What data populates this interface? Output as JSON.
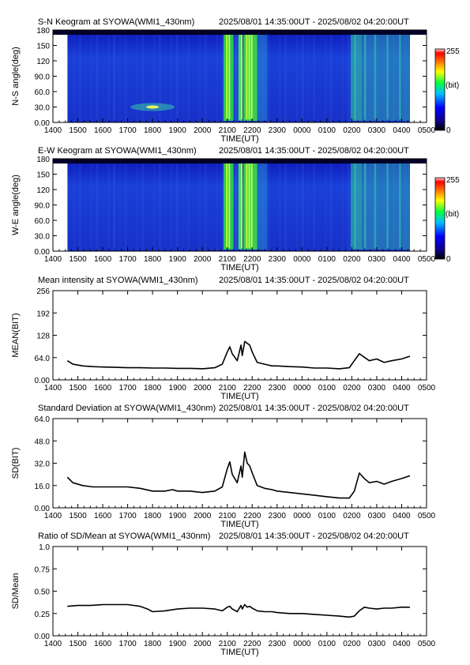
{
  "time_ticks": [
    "1400",
    "1500",
    "1600",
    "1700",
    "1800",
    "1900",
    "2000",
    "2100",
    "2200",
    "2300",
    "0000",
    "0100",
    "0200",
    "0300",
    "0400",
    "0500"
  ],
  "xlabel": "TIME(UT)",
  "period": "2025/08/01 14:35:00UT - 2025/08/02 04:20:00UT",
  "colorbar": {
    "max_label": "255",
    "unit_label": "(bit)",
    "min_label": "0"
  },
  "chart_data": [
    {
      "type": "heatmap",
      "title": "S-N Keogram at SYOWA(WMI1_430nm)",
      "ylabel": "N-S angle(deg)",
      "yticks": [
        "180",
        "150",
        "120",
        "90.0",
        "60.0",
        "30.0",
        "0.00"
      ],
      "ylim": [
        0,
        180
      ],
      "xlim_hours": [
        14.0,
        29.0
      ],
      "data_start_hour": 14.583,
      "data_end_hour": 28.333,
      "features": [
        {
          "x_hour": 21.05,
          "angle": 90,
          "level": "bright"
        },
        {
          "x_hour": 21.55,
          "angle": 90,
          "level": "bright"
        },
        {
          "x_hour": 21.85,
          "angle": 90,
          "level": "bright"
        },
        {
          "x_hour": 26.4,
          "angle": 90,
          "level": "moderate"
        },
        {
          "x_hour": 18.0,
          "angle": 30,
          "level": "spot"
        }
      ]
    },
    {
      "type": "heatmap",
      "title": "E-W Keogram at SYOWA(WMI1_430nm)",
      "ylabel": "W-E angle(deg)",
      "yticks": [
        "180",
        "150",
        "120",
        "90.0",
        "60.0",
        "30.0",
        "0.00"
      ],
      "ylim": [
        0,
        180
      ],
      "xlim_hours": [
        14.0,
        29.0
      ],
      "data_start_hour": 14.583,
      "data_end_hour": 28.333
    },
    {
      "type": "line",
      "title": "Mean intensity at SYOWA(WMI1_430nm)",
      "ylabel": "MEAN(BIT)",
      "yticks": [
        "256",
        "192",
        "128",
        "64.0",
        "0.00"
      ],
      "ylim": [
        0,
        256
      ],
      "x_hours": [
        14.58,
        14.8,
        15.2,
        15.6,
        16.0,
        16.5,
        17.0,
        17.5,
        18.0,
        18.5,
        19.0,
        19.5,
        20.0,
        20.5,
        20.8,
        21.0,
        21.1,
        21.2,
        21.4,
        21.55,
        21.6,
        21.7,
        21.8,
        21.9,
        22.0,
        22.2,
        22.5,
        22.8,
        23.0,
        23.5,
        24.0,
        24.5,
        25.0,
        25.5,
        25.9,
        26.1,
        26.3,
        26.5,
        26.7,
        27.0,
        27.3,
        27.6,
        28.0,
        28.33
      ],
      "values": [
        55,
        45,
        40,
        38,
        37,
        36,
        35,
        35,
        34,
        34,
        33,
        33,
        32,
        35,
        45,
        80,
        95,
        75,
        55,
        100,
        70,
        110,
        105,
        100,
        80,
        50,
        45,
        40,
        40,
        38,
        37,
        34,
        34,
        32,
        35,
        55,
        75,
        65,
        55,
        60,
        50,
        55,
        60,
        68
      ]
    },
    {
      "type": "line",
      "title": "Standard Deviation at SYOWA(WMI1_430nm)",
      "ylabel": "SD(BIT)",
      "yticks": [
        "64.0",
        "48.0",
        "32.0",
        "16.0",
        "0.00"
      ],
      "ylim": [
        0,
        64
      ],
      "x_hours": [
        14.58,
        14.8,
        15.2,
        15.6,
        16.0,
        16.5,
        17.0,
        17.5,
        18.0,
        18.5,
        18.8,
        19.0,
        19.5,
        20.0,
        20.5,
        20.8,
        21.0,
        21.1,
        21.2,
        21.4,
        21.55,
        21.6,
        21.7,
        21.8,
        21.9,
        22.0,
        22.2,
        22.5,
        22.8,
        23.0,
        23.5,
        24.0,
        24.5,
        25.0,
        25.5,
        25.9,
        26.1,
        26.3,
        26.5,
        26.7,
        27.0,
        27.3,
        27.6,
        28.0,
        28.33
      ],
      "values": [
        22,
        18,
        16,
        15,
        15,
        15,
        15,
        14,
        12,
        12,
        13,
        12,
        12,
        11,
        12,
        15,
        28,
        33,
        24,
        18,
        30,
        22,
        40,
        32,
        30,
        25,
        16,
        14,
        13,
        12,
        11,
        10,
        9,
        8,
        7,
        7,
        12,
        25,
        21,
        18,
        19,
        17,
        19,
        21,
        23
      ]
    },
    {
      "type": "line",
      "title": "Ratio of SD/Mean at SYOWA(WMI1_430nm)",
      "ylabel": "SD/Mean",
      "yticks": [
        "1.0",
        "0.75",
        "0.50",
        "0.25",
        "0.00"
      ],
      "ylim": [
        0,
        1.0
      ],
      "x_hours": [
        14.58,
        15.0,
        15.5,
        16.0,
        16.5,
        17.0,
        17.5,
        17.8,
        18.0,
        18.5,
        19.0,
        19.5,
        20.0,
        20.5,
        20.8,
        21.0,
        21.1,
        21.2,
        21.4,
        21.55,
        21.6,
        21.7,
        21.8,
        21.9,
        22.0,
        22.2,
        22.5,
        22.8,
        23.0,
        23.5,
        24.0,
        24.5,
        25.0,
        25.5,
        25.9,
        26.1,
        26.3,
        26.5,
        26.7,
        27.0,
        27.3,
        27.6,
        28.0,
        28.33
      ],
      "values": [
        0.33,
        0.34,
        0.34,
        0.35,
        0.35,
        0.35,
        0.33,
        0.3,
        0.27,
        0.28,
        0.3,
        0.31,
        0.31,
        0.3,
        0.28,
        0.32,
        0.33,
        0.3,
        0.27,
        0.34,
        0.3,
        0.35,
        0.32,
        0.33,
        0.31,
        0.28,
        0.27,
        0.27,
        0.26,
        0.25,
        0.25,
        0.24,
        0.23,
        0.22,
        0.21,
        0.22,
        0.28,
        0.32,
        0.31,
        0.3,
        0.31,
        0.31,
        0.32,
        0.32
      ]
    }
  ]
}
